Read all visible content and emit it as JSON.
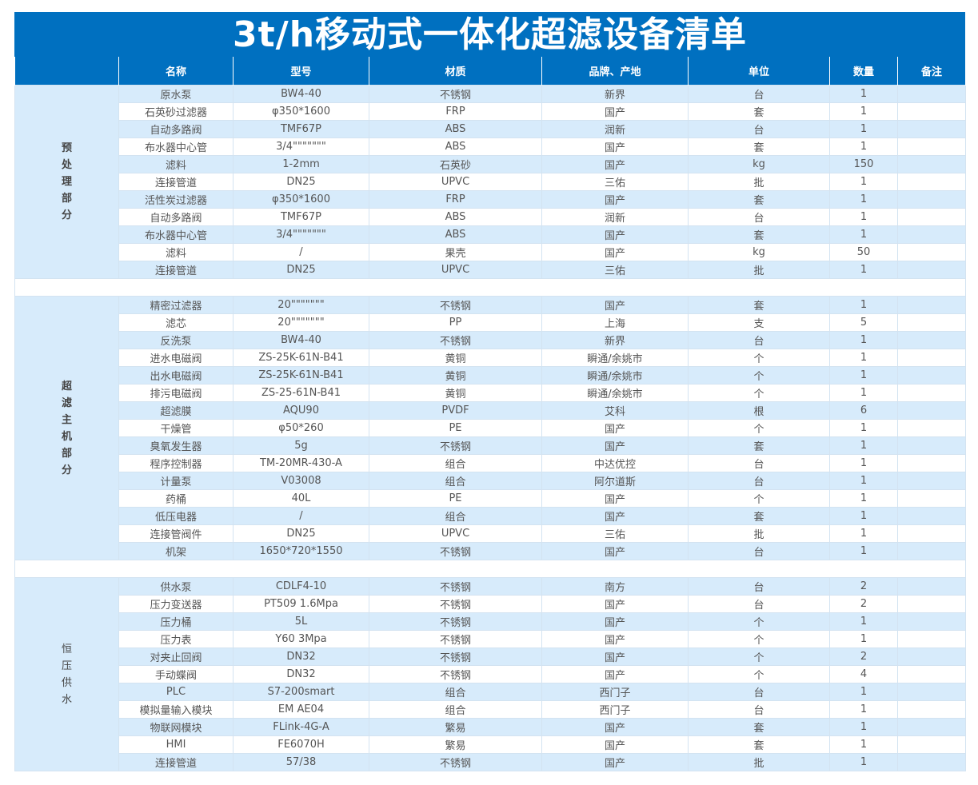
{
  "title": "3t/h移动式一体化超滤设备清单",
  "headers": [
    "",
    "名称",
    "型号",
    "材质",
    "品牌、产地",
    "单位",
    "数量",
    "备注"
  ],
  "sections": [
    {
      "label": "预处理部分",
      "bold": true,
      "rows": [
        [
          "原水泵",
          "BW4-40",
          "不锈钢",
          "新界",
          "台",
          "1",
          ""
        ],
        [
          "石英砂过滤器",
          "φ350*1600",
          "FRP",
          "国产",
          "套",
          "1",
          ""
        ],
        [
          "自动多路阀",
          "TMF67P",
          "ABS",
          "润新",
          "台",
          "1",
          ""
        ],
        [
          "布水器中心管",
          "3/4\"\"\"\"\"\"\"",
          "ABS",
          "国产",
          "套",
          "1",
          ""
        ],
        [
          "滤料",
          "1-2mm",
          "石英砂",
          "国产",
          "kg",
          "150",
          ""
        ],
        [
          "连接管道",
          "DN25",
          "UPVC",
          "三佑",
          "批",
          "1",
          ""
        ],
        [
          "活性炭过滤器",
          "φ350*1600",
          "FRP",
          "国产",
          "套",
          "1",
          ""
        ],
        [
          "自动多路阀",
          "TMF67P",
          "ABS",
          "润新",
          "台",
          "1",
          ""
        ],
        [
          "布水器中心管",
          "3/4\"\"\"\"\"\"\"",
          "ABS",
          "国产",
          "套",
          "1",
          ""
        ],
        [
          "滤料",
          "/",
          "果壳",
          "国产",
          "kg",
          "50",
          ""
        ],
        [
          "连接管道",
          "DN25",
          "UPVC",
          "三佑",
          "批",
          "1",
          ""
        ]
      ]
    },
    {
      "label": "超滤主机部分",
      "bold": true,
      "rows": [
        [
          "精密过滤器",
          "20\"\"\"\"\"\"\"",
          "不锈钢",
          "国产",
          "套",
          "1",
          ""
        ],
        [
          "滤芯",
          "20\"\"\"\"\"\"\"",
          "PP",
          "上海",
          "支",
          "5",
          ""
        ],
        [
          "反洗泵",
          "BW4-40",
          "不锈钢",
          "新界",
          "台",
          "1",
          ""
        ],
        [
          "进水电磁阀",
          "ZS-25K-61N-B41",
          "黄铜",
          "瞬通/余姚市",
          "个",
          "1",
          ""
        ],
        [
          "出水电磁阀",
          "ZS-25K-61N-B41",
          "黄铜",
          "瞬通/余姚市",
          "个",
          "1",
          ""
        ],
        [
          "排污电磁阀",
          "ZS-25-61N-B41",
          "黄铜",
          "瞬通/余姚市",
          "个",
          "1",
          ""
        ],
        [
          "超滤膜",
          "AQU90",
          "PVDF",
          "艾科",
          "根",
          "6",
          ""
        ],
        [
          "干燥管",
          "φ50*260",
          "PE",
          "国产",
          "个",
          "1",
          ""
        ],
        [
          "臭氧发生器",
          "5g",
          "不锈钢",
          "国产",
          "套",
          "1",
          ""
        ],
        [
          "程序控制器",
          "TM-20MR-430-A",
          "组合",
          "中达优控",
          "台",
          "1",
          ""
        ],
        [
          "计量泵",
          "V03008",
          "组合",
          "阿尔道斯",
          "台",
          "1",
          ""
        ],
        [
          "药桶",
          "40L",
          "PE",
          "国产",
          "个",
          "1",
          ""
        ],
        [
          "低压电器",
          "/",
          "组合",
          "国产",
          "套",
          "1",
          ""
        ],
        [
          "连接管阀件",
          "DN25",
          "UPVC",
          "三佑",
          "批",
          "1",
          ""
        ],
        [
          "机架",
          "1650*720*1550",
          "不锈钢",
          "国产",
          "台",
          "1",
          ""
        ]
      ]
    },
    {
      "label": "恒压供水",
      "bold": false,
      "rows": [
        [
          "供水泵",
          "CDLF4-10",
          "不锈钢",
          "南方",
          "台",
          "2",
          ""
        ],
        [
          "压力变送器",
          "PT509 1.6Mpa",
          "不锈钢",
          "国产",
          "台",
          "2",
          ""
        ],
        [
          "压力桶",
          "5L",
          "不锈钢",
          "国产",
          "个",
          "1",
          ""
        ],
        [
          "压力表",
          "Y60 3Mpa",
          "不锈钢",
          "国产",
          "个",
          "1",
          ""
        ],
        [
          "对夹止回阀",
          "DN32",
          "不锈钢",
          "国产",
          "个",
          "2",
          ""
        ],
        [
          "手动蝶阀",
          "DN32",
          "不锈钢",
          "国产",
          "个",
          "4",
          ""
        ],
        [
          "PLC",
          "S7-200smart",
          "组合",
          "西门子",
          "台",
          "1",
          ""
        ],
        [
          "模拟量输入模块",
          "EM AE04",
          "组合",
          "西门子",
          "台",
          "1",
          ""
        ],
        [
          "物联网模块",
          "FLink-4G-A",
          "繁易",
          "国产",
          "套",
          "1",
          ""
        ],
        [
          "HMI",
          "FE6070H",
          "繁易",
          "国产",
          "套",
          "1",
          ""
        ],
        [
          "连接管道",
          "57/38",
          "不锈钢",
          "国产",
          "批",
          "1",
          ""
        ]
      ]
    }
  ]
}
